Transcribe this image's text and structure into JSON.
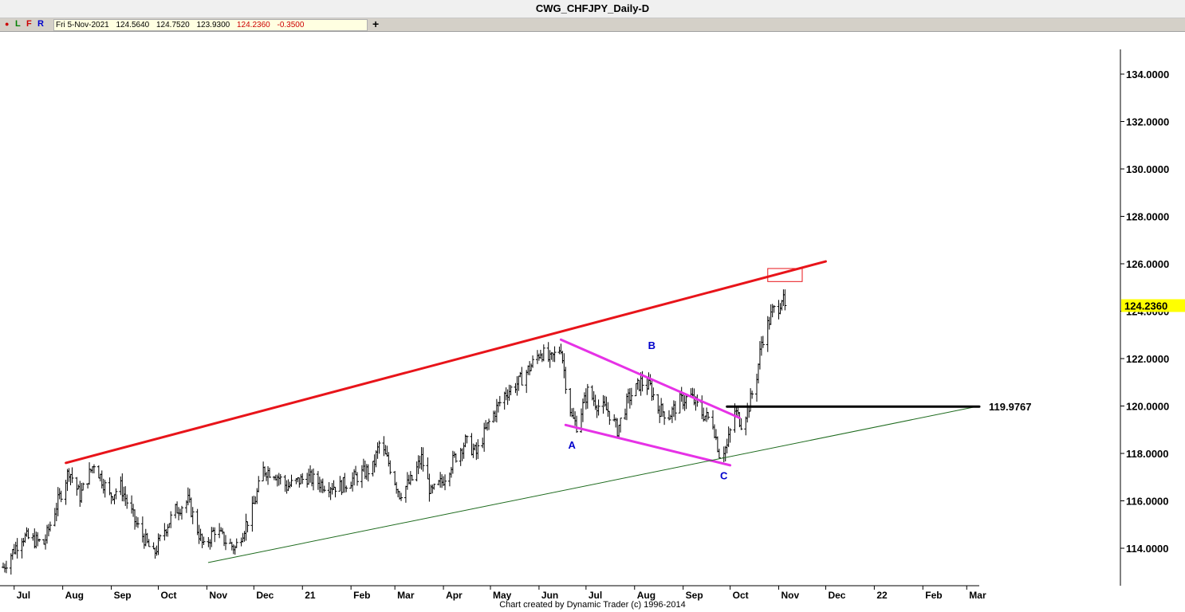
{
  "window": {
    "title": "CWG_CHFJPY_Daily-D"
  },
  "toolbar": {
    "flags": [
      "L",
      "F",
      "R"
    ],
    "add_label": "+"
  },
  "ohlc": {
    "date": "Fri 5-Nov-2021",
    "open": "124.5640",
    "high": "124.7520",
    "low": "123.9300",
    "close": "124.2360",
    "change": "-0.3500"
  },
  "colors": {
    "resistance_line": "#e8141a",
    "wedge_lines": "#e632e6",
    "support_line": "#1e6b1e",
    "level_line": "#000000",
    "wave_labels": "#0000cc",
    "price_highlight": "#ffff00"
  },
  "footer": {
    "credit": "Chart created by Dynamic Trader  (c) 1996-2014"
  },
  "chart_data": {
    "type": "bar",
    "subtype": "ohlc",
    "title": "CWG_CHFJPY_Daily-D",
    "x_tick_labels": [
      "Jul",
      "Aug",
      "Sep",
      "Oct",
      "Nov",
      "Dec",
      "21",
      "Feb",
      "Mar",
      "Apr",
      "May",
      "Jun",
      "Jul",
      "Aug",
      "Sep",
      "Oct",
      "Nov",
      "Dec",
      "22",
      "Feb",
      "Mar"
    ],
    "y_tick_labels": [
      "114.0000",
      "116.0000",
      "118.0000",
      "120.0000",
      "122.0000",
      "124.0000",
      "126.0000",
      "128.0000",
      "130.0000",
      "132.0000",
      "134.0000"
    ],
    "ylim": [
      112.7,
      135.0
    ],
    "xlim": [
      "2020-06-24",
      "2022-03-09"
    ],
    "grid": false,
    "last_price": "124.2360",
    "level_label": "119.9767",
    "series_anchors": [
      {
        "date": "2020-06-24",
        "close": 113.2
      },
      {
        "date": "2020-07-06",
        "close": 114.5
      },
      {
        "date": "2020-07-20",
        "close": 114.2
      },
      {
        "date": "2020-07-27",
        "close": 115.6
      },
      {
        "date": "2020-08-05",
        "close": 117.3
      },
      {
        "date": "2020-08-12",
        "close": 116.2
      },
      {
        "date": "2020-08-21",
        "close": 117.6
      },
      {
        "date": "2020-08-31",
        "close": 116.2
      },
      {
        "date": "2020-09-07",
        "close": 116.6
      },
      {
        "date": "2020-09-17",
        "close": 115.0
      },
      {
        "date": "2020-09-28",
        "close": 113.7
      },
      {
        "date": "2020-10-05",
        "close": 114.8
      },
      {
        "date": "2020-10-12",
        "close": 115.6
      },
      {
        "date": "2020-10-20",
        "close": 116.0
      },
      {
        "date": "2020-10-30",
        "close": 114.0
      },
      {
        "date": "2020-11-06",
        "close": 114.8
      },
      {
        "date": "2020-11-13",
        "close": 114.3
      },
      {
        "date": "2020-11-19",
        "close": 114.0
      },
      {
        "date": "2020-11-30",
        "close": 115.6
      },
      {
        "date": "2020-12-07",
        "close": 117.3
      },
      {
        "date": "2020-12-14",
        "close": 117.2
      },
      {
        "date": "2020-12-22",
        "close": 116.6
      },
      {
        "date": "2021-01-04",
        "close": 117.0
      },
      {
        "date": "2021-01-14",
        "close": 116.7
      },
      {
        "date": "2021-01-25",
        "close": 116.6
      },
      {
        "date": "2021-02-04",
        "close": 117.0
      },
      {
        "date": "2021-02-15",
        "close": 117.4
      },
      {
        "date": "2021-02-19",
        "close": 118.4
      },
      {
        "date": "2021-02-25",
        "close": 117.6
      },
      {
        "date": "2021-03-04",
        "close": 116.3
      },
      {
        "date": "2021-03-12",
        "close": 116.9
      },
      {
        "date": "2021-03-18",
        "close": 117.8
      },
      {
        "date": "2021-03-24",
        "close": 116.3
      },
      {
        "date": "2021-03-31",
        "close": 116.8
      },
      {
        "date": "2021-04-08",
        "close": 117.8
      },
      {
        "date": "2021-04-15",
        "close": 118.5
      },
      {
        "date": "2021-04-22",
        "close": 118.0
      },
      {
        "date": "2021-04-30",
        "close": 119.3
      },
      {
        "date": "2021-05-10",
        "close": 120.5
      },
      {
        "date": "2021-05-19",
        "close": 121.0
      },
      {
        "date": "2021-05-27",
        "close": 121.7
      },
      {
        "date": "2021-06-02",
        "close": 122.3
      },
      {
        "date": "2021-06-08",
        "close": 121.9
      },
      {
        "date": "2021-06-15",
        "close": 122.5
      },
      {
        "date": "2021-06-18",
        "close": 121.0
      },
      {
        "date": "2021-06-22",
        "close": 119.5
      },
      {
        "date": "2021-06-25",
        "close": 119.2
      },
      {
        "date": "2021-07-02",
        "close": 120.6
      },
      {
        "date": "2021-07-09",
        "close": 120.0
      },
      {
        "date": "2021-07-15",
        "close": 119.8
      },
      {
        "date": "2021-07-21",
        "close": 119.0
      },
      {
        "date": "2021-07-28",
        "close": 120.3
      },
      {
        "date": "2021-08-05",
        "close": 121.0
      },
      {
        "date": "2021-08-11",
        "close": 120.8
      },
      {
        "date": "2021-08-16",
        "close": 119.9
      },
      {
        "date": "2021-08-23",
        "close": 119.6
      },
      {
        "date": "2021-08-30",
        "close": 120.2
      },
      {
        "date": "2021-09-06",
        "close": 120.4
      },
      {
        "date": "2021-09-13",
        "close": 119.7
      },
      {
        "date": "2021-09-20",
        "close": 119.3
      },
      {
        "date": "2021-09-24",
        "close": 118.0
      },
      {
        "date": "2021-09-29",
        "close": 118.3
      },
      {
        "date": "2021-10-04",
        "close": 119.8
      },
      {
        "date": "2021-10-08",
        "close": 119.3
      },
      {
        "date": "2021-10-13",
        "close": 120.0
      },
      {
        "date": "2021-10-18",
        "close": 121.3
      },
      {
        "date": "2021-10-21",
        "close": 122.7
      },
      {
        "date": "2021-10-26",
        "close": 123.6
      },
      {
        "date": "2021-10-28",
        "close": 124.0
      },
      {
        "date": "2021-11-01",
        "close": 124.2
      },
      {
        "date": "2021-11-03",
        "close": 124.6
      },
      {
        "date": "2021-11-05",
        "close": 124.2
      }
    ],
    "annotations": [
      {
        "type": "text",
        "text": "A",
        "date": "2021-06-22",
        "value": 118.2
      },
      {
        "type": "text",
        "text": "B",
        "date": "2021-08-12",
        "value": 122.4
      },
      {
        "type": "text",
        "text": "C",
        "date": "2021-09-27",
        "value": 116.9
      }
    ],
    "trendlines": [
      {
        "name": "resistance",
        "from": {
          "date": "2020-08-03",
          "value": 117.6
        },
        "to": {
          "date": "2021-12-01",
          "value": 126.1
        }
      },
      {
        "name": "wedge-upper",
        "from": {
          "date": "2021-06-15",
          "value": 122.8
        },
        "to": {
          "date": "2021-10-07",
          "value": 119.5
        }
      },
      {
        "name": "wedge-lower",
        "from": {
          "date": "2021-06-18",
          "value": 119.2
        },
        "to": {
          "date": "2021-10-01",
          "value": 117.5
        }
      },
      {
        "name": "support",
        "from": {
          "date": "2020-11-02",
          "value": 113.4
        },
        "to": {
          "date": "2022-03-09",
          "value": 120.0
        }
      },
      {
        "name": "level",
        "from": {
          "date": "2021-09-29",
          "value": 119.9767
        },
        "to": {
          "date": "2022-03-09",
          "value": 119.9767
        }
      }
    ],
    "zone": {
      "from": {
        "date": "2021-10-25",
        "value": 125.8
      },
      "to": {
        "date": "2021-11-16",
        "value": 125.25
      }
    }
  }
}
